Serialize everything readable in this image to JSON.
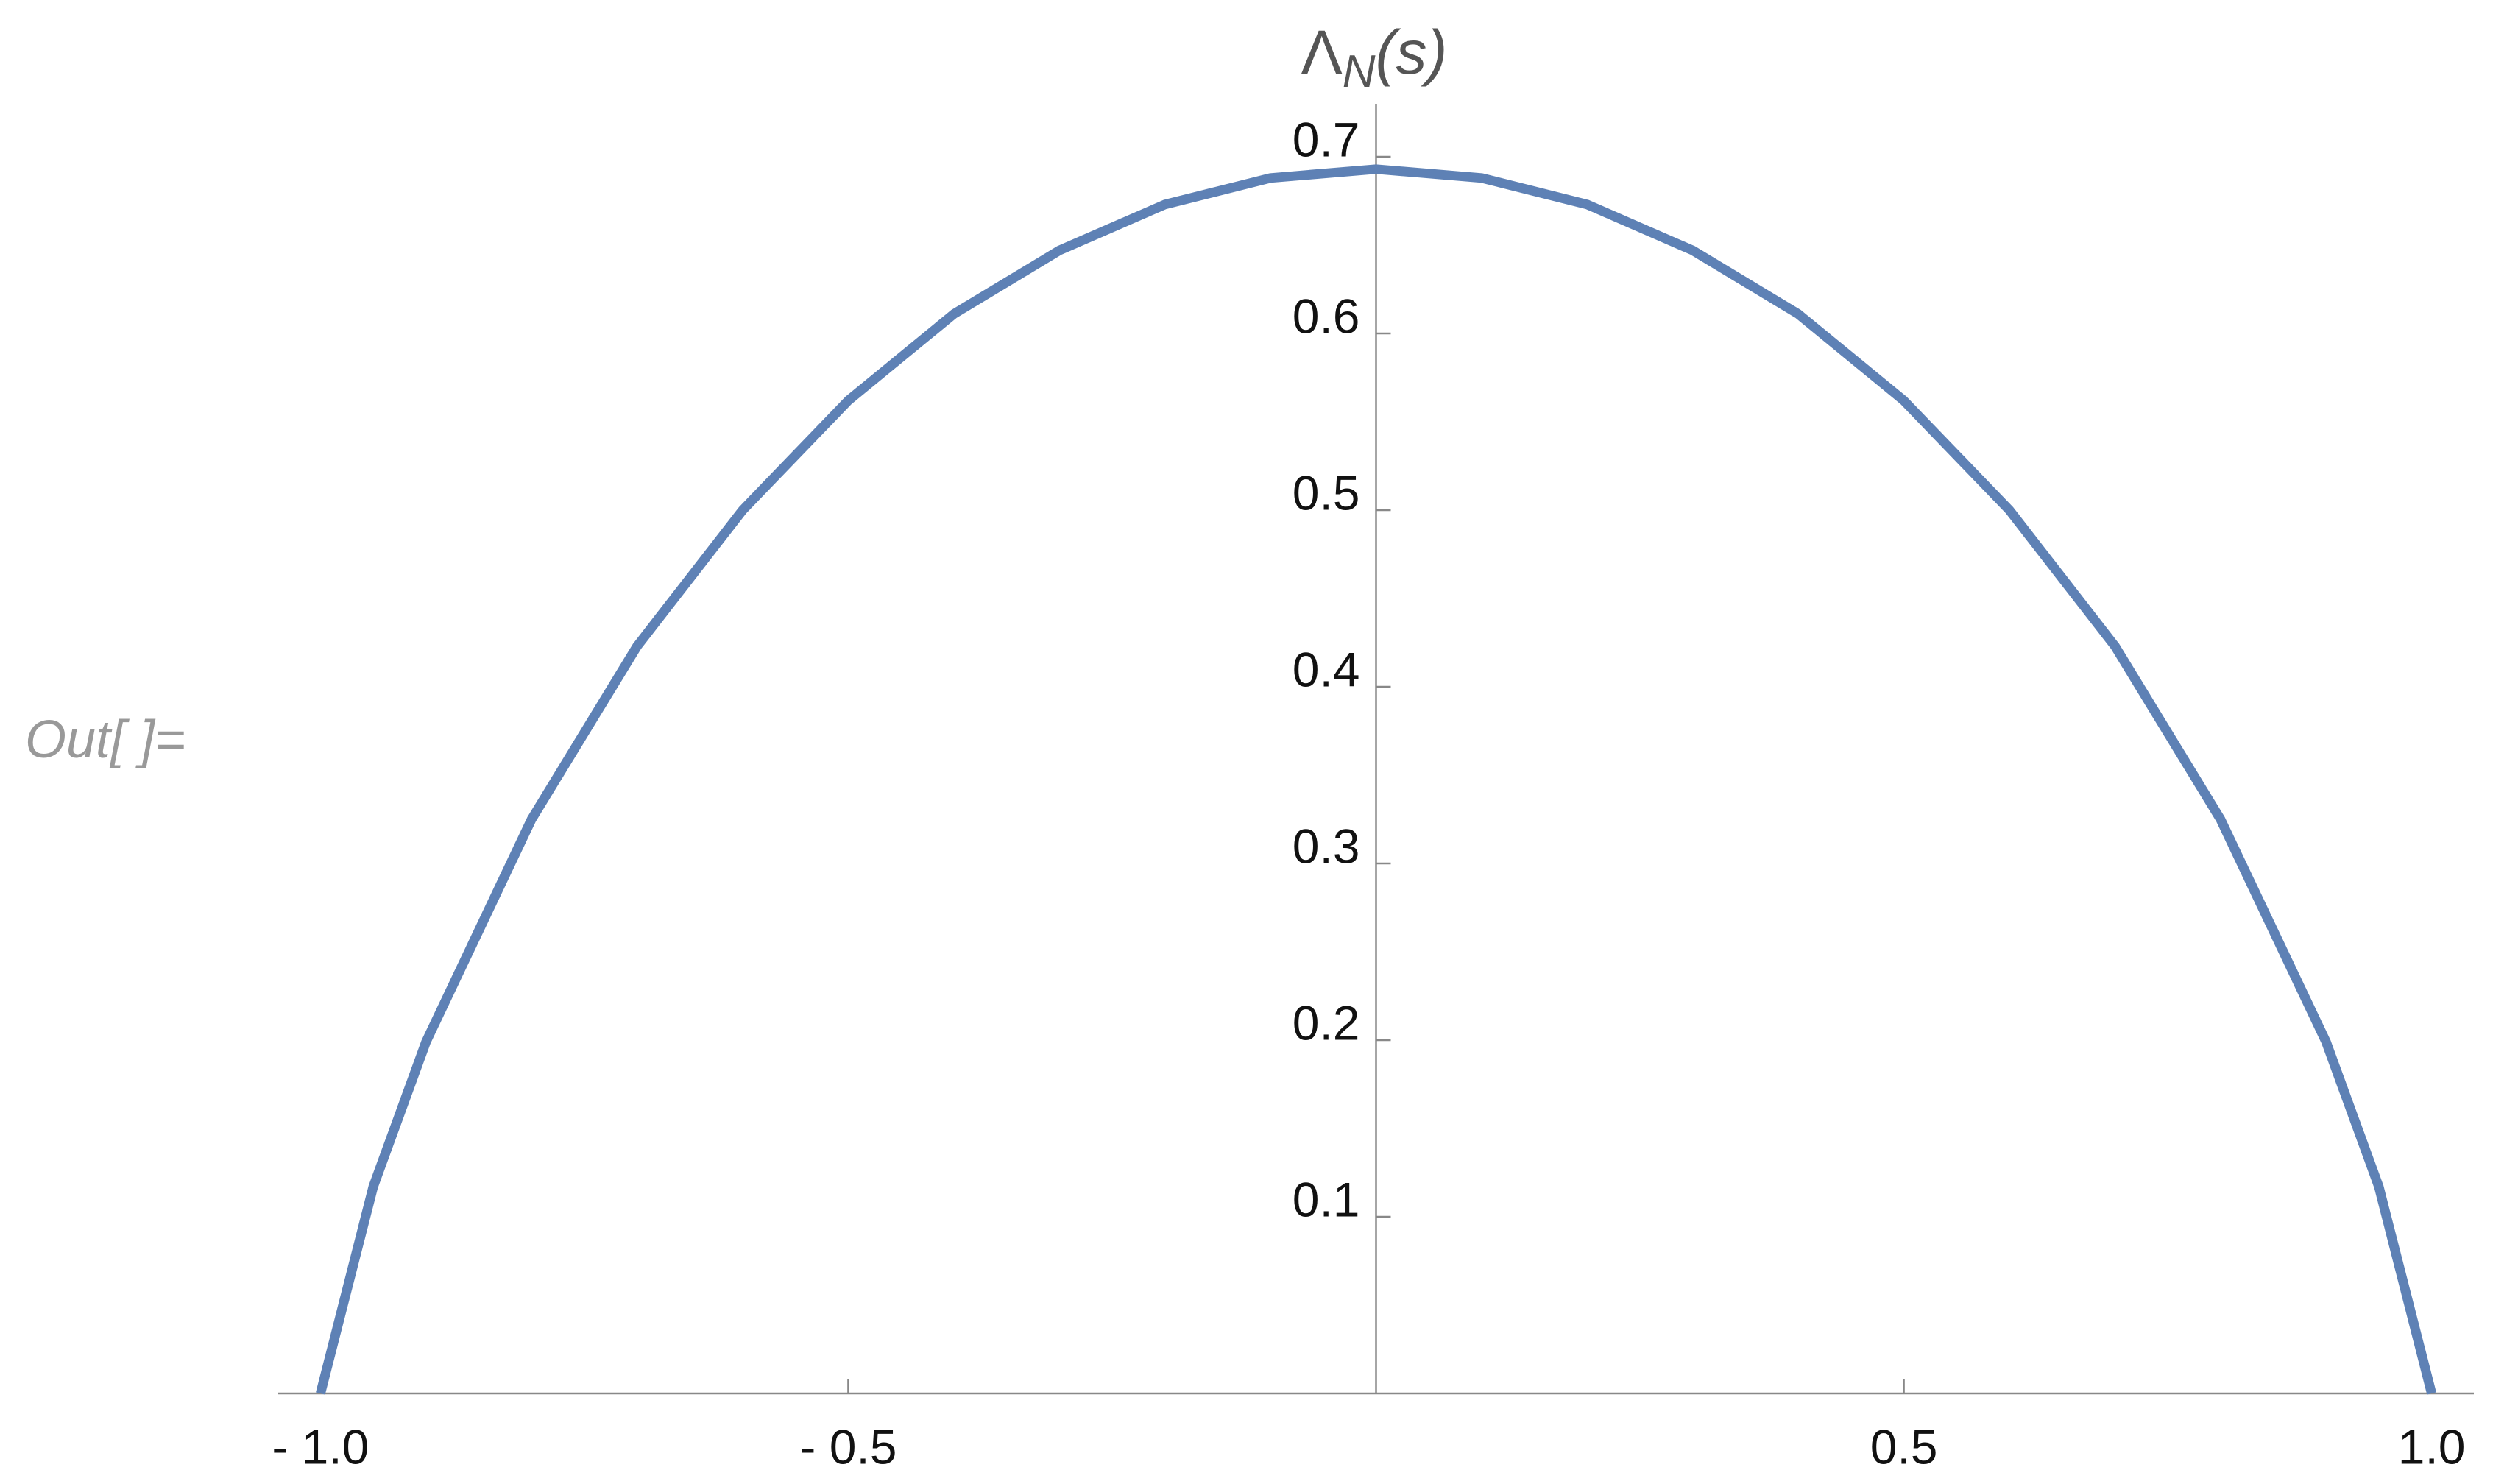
{
  "cell_label": "Out[  ]=",
  "chart_data": {
    "type": "line",
    "y_label": {
      "symbol": "Λ",
      "subscript": "N",
      "argument": "(s)"
    },
    "x": [
      -1,
      -0.95,
      -0.9,
      -0.8,
      -0.7,
      -0.6,
      -0.5,
      -0.4,
      -0.3,
      -0.2,
      -0.1,
      0,
      0.1,
      0.2,
      0.3,
      0.4,
      0.5,
      0.6,
      0.7,
      0.8,
      0.9,
      0.95,
      1
    ],
    "series": [
      {
        "color": "#5e81b5",
        "values": [
          0,
          0.117,
          0.199,
          0.325,
          0.423,
          0.5,
          0.562,
          0.611,
          0.647,
          0.673,
          0.688,
          0.693,
          0.688,
          0.673,
          0.647,
          0.611,
          0.562,
          0.5,
          0.423,
          0.325,
          0.199,
          0.117,
          0
        ]
      }
    ],
    "xlim": [
      -1.04,
      1.04
    ],
    "ylim": [
      0,
      0.73
    ],
    "xticks": [
      {
        "value": -1,
        "label": "- 1.0"
      },
      {
        "value": -0.5,
        "label": "- 0.5"
      },
      0.5,
      {
        "value": 1,
        "label": "1.0"
      }
    ],
    "yticks": [
      0.1,
      0.2,
      0.3,
      0.4,
      0.5,
      0.6,
      0.7
    ]
  }
}
